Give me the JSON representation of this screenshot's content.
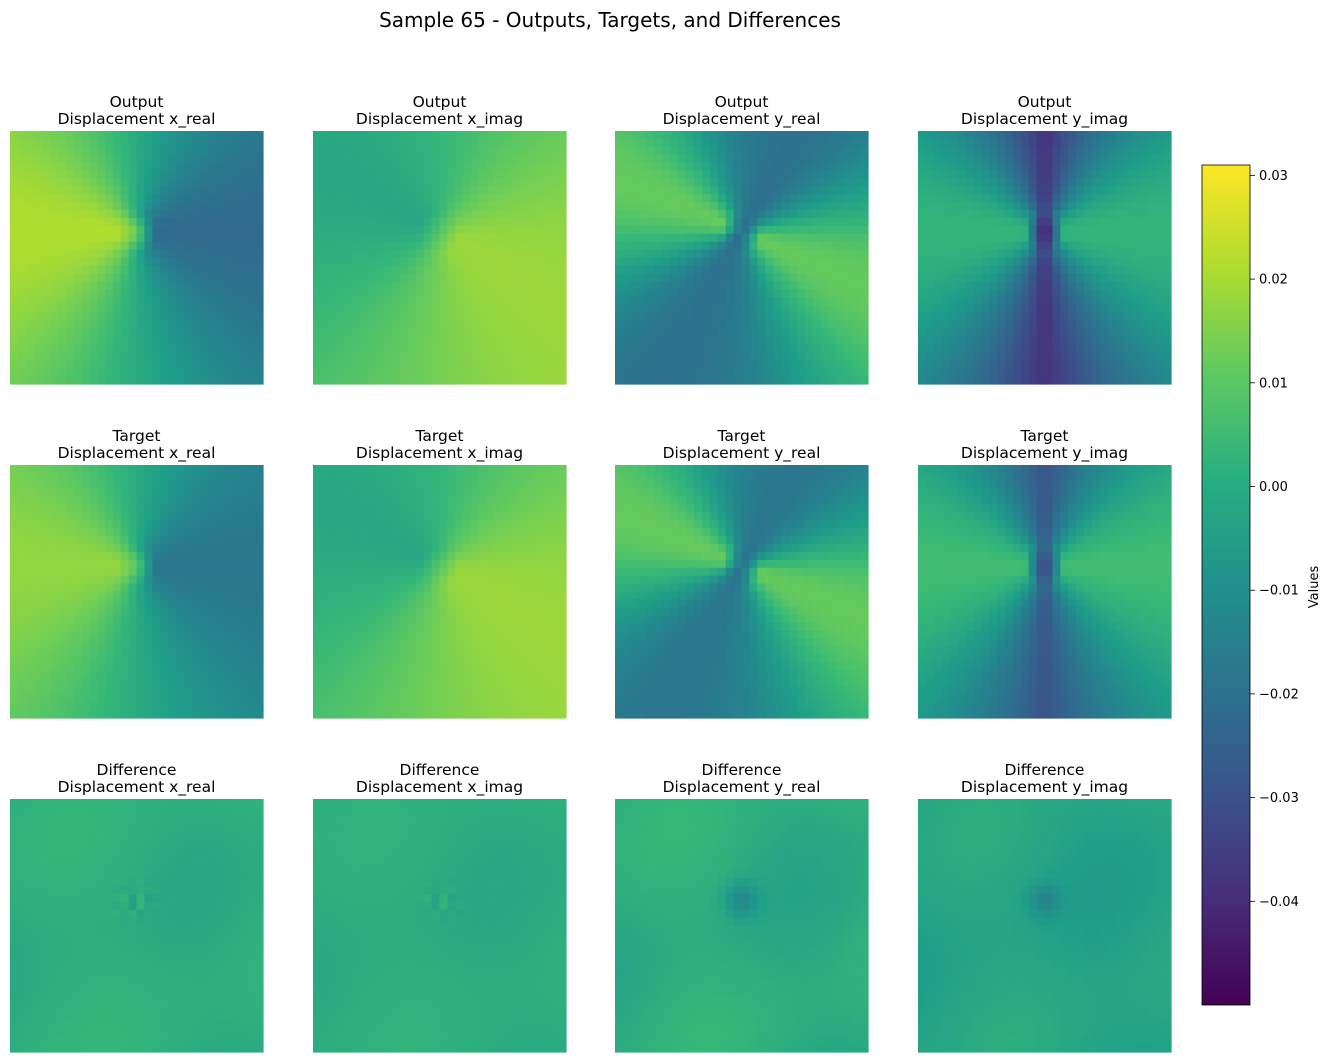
{
  "figure": {
    "title": "Sample 65 - Outputs, Targets, and Differences"
  },
  "chart_data": {
    "type": "heatmap",
    "title": "Sample 65 - Outputs, Targets, and Differences",
    "colormap": "viridis",
    "grid": false,
    "axes_visible": false,
    "layout": {
      "rows": 3,
      "cols": 4
    },
    "resolution": 32,
    "panels": [
      {
        "row": 0,
        "col": 0,
        "title_line1": "Output",
        "title_line2": "Displacement x_real",
        "field": "x_real",
        "kind": "output",
        "min_value": -0.022,
        "max_value": 0.029
      },
      {
        "row": 0,
        "col": 1,
        "title_line1": "Output",
        "title_line2": "Displacement x_imag",
        "field": "x_imag",
        "kind": "output",
        "min_value": -0.008,
        "max_value": 0.019
      },
      {
        "row": 0,
        "col": 2,
        "title_line1": "Output",
        "title_line2": "Displacement y_real",
        "field": "y_real",
        "kind": "output",
        "min_value": -0.028,
        "max_value": 0.013
      },
      {
        "row": 0,
        "col": 3,
        "title_line1": "Output",
        "title_line2": "Displacement y_imag",
        "field": "y_imag",
        "kind": "output",
        "min_value": -0.049,
        "max_value": 0.003
      },
      {
        "row": 1,
        "col": 0,
        "title_line1": "Target",
        "title_line2": "Displacement x_real",
        "field": "x_real",
        "kind": "target",
        "min_value": -0.018,
        "max_value": 0.024
      },
      {
        "row": 1,
        "col": 1,
        "title_line1": "Target",
        "title_line2": "Displacement x_imag",
        "field": "x_imag",
        "kind": "target",
        "min_value": -0.008,
        "max_value": 0.019
      },
      {
        "row": 1,
        "col": 2,
        "title_line1": "Target",
        "title_line2": "Displacement y_real",
        "field": "y_real",
        "kind": "target",
        "min_value": -0.026,
        "max_value": 0.013
      },
      {
        "row": 1,
        "col": 3,
        "title_line1": "Target",
        "title_line2": "Displacement y_imag",
        "field": "y_imag",
        "kind": "target",
        "min_value": -0.038,
        "max_value": 0.006
      },
      {
        "row": 2,
        "col": 0,
        "title_line1": "Difference",
        "title_line2": "Displacement x_real",
        "field": "x_real",
        "kind": "difference",
        "min_value": -0.008,
        "max_value": 0.01
      },
      {
        "row": 2,
        "col": 1,
        "title_line1": "Difference",
        "title_line2": "Displacement x_imag",
        "field": "x_imag",
        "kind": "difference",
        "min_value": -0.006,
        "max_value": 0.007
      },
      {
        "row": 2,
        "col": 2,
        "title_line1": "Difference",
        "title_line2": "Displacement y_real",
        "field": "y_real",
        "kind": "difference",
        "min_value": -0.012,
        "max_value": 0.013
      },
      {
        "row": 2,
        "col": 3,
        "title_line1": "Difference",
        "title_line2": "Displacement y_imag",
        "field": "y_imag",
        "kind": "difference",
        "min_value": -0.013,
        "max_value": 0.008
      }
    ],
    "colorbar": {
      "label": "Values",
      "range": [
        -0.05,
        0.031
      ],
      "ticks": [
        0.03,
        0.02,
        0.01,
        0.0,
        -0.01,
        -0.02,
        -0.03,
        -0.04
      ],
      "tick_labels": [
        "0.03",
        "0.02",
        "0.01",
        "0.00",
        "−0.01",
        "−0.02",
        "−0.03",
        "−0.04"
      ]
    }
  }
}
